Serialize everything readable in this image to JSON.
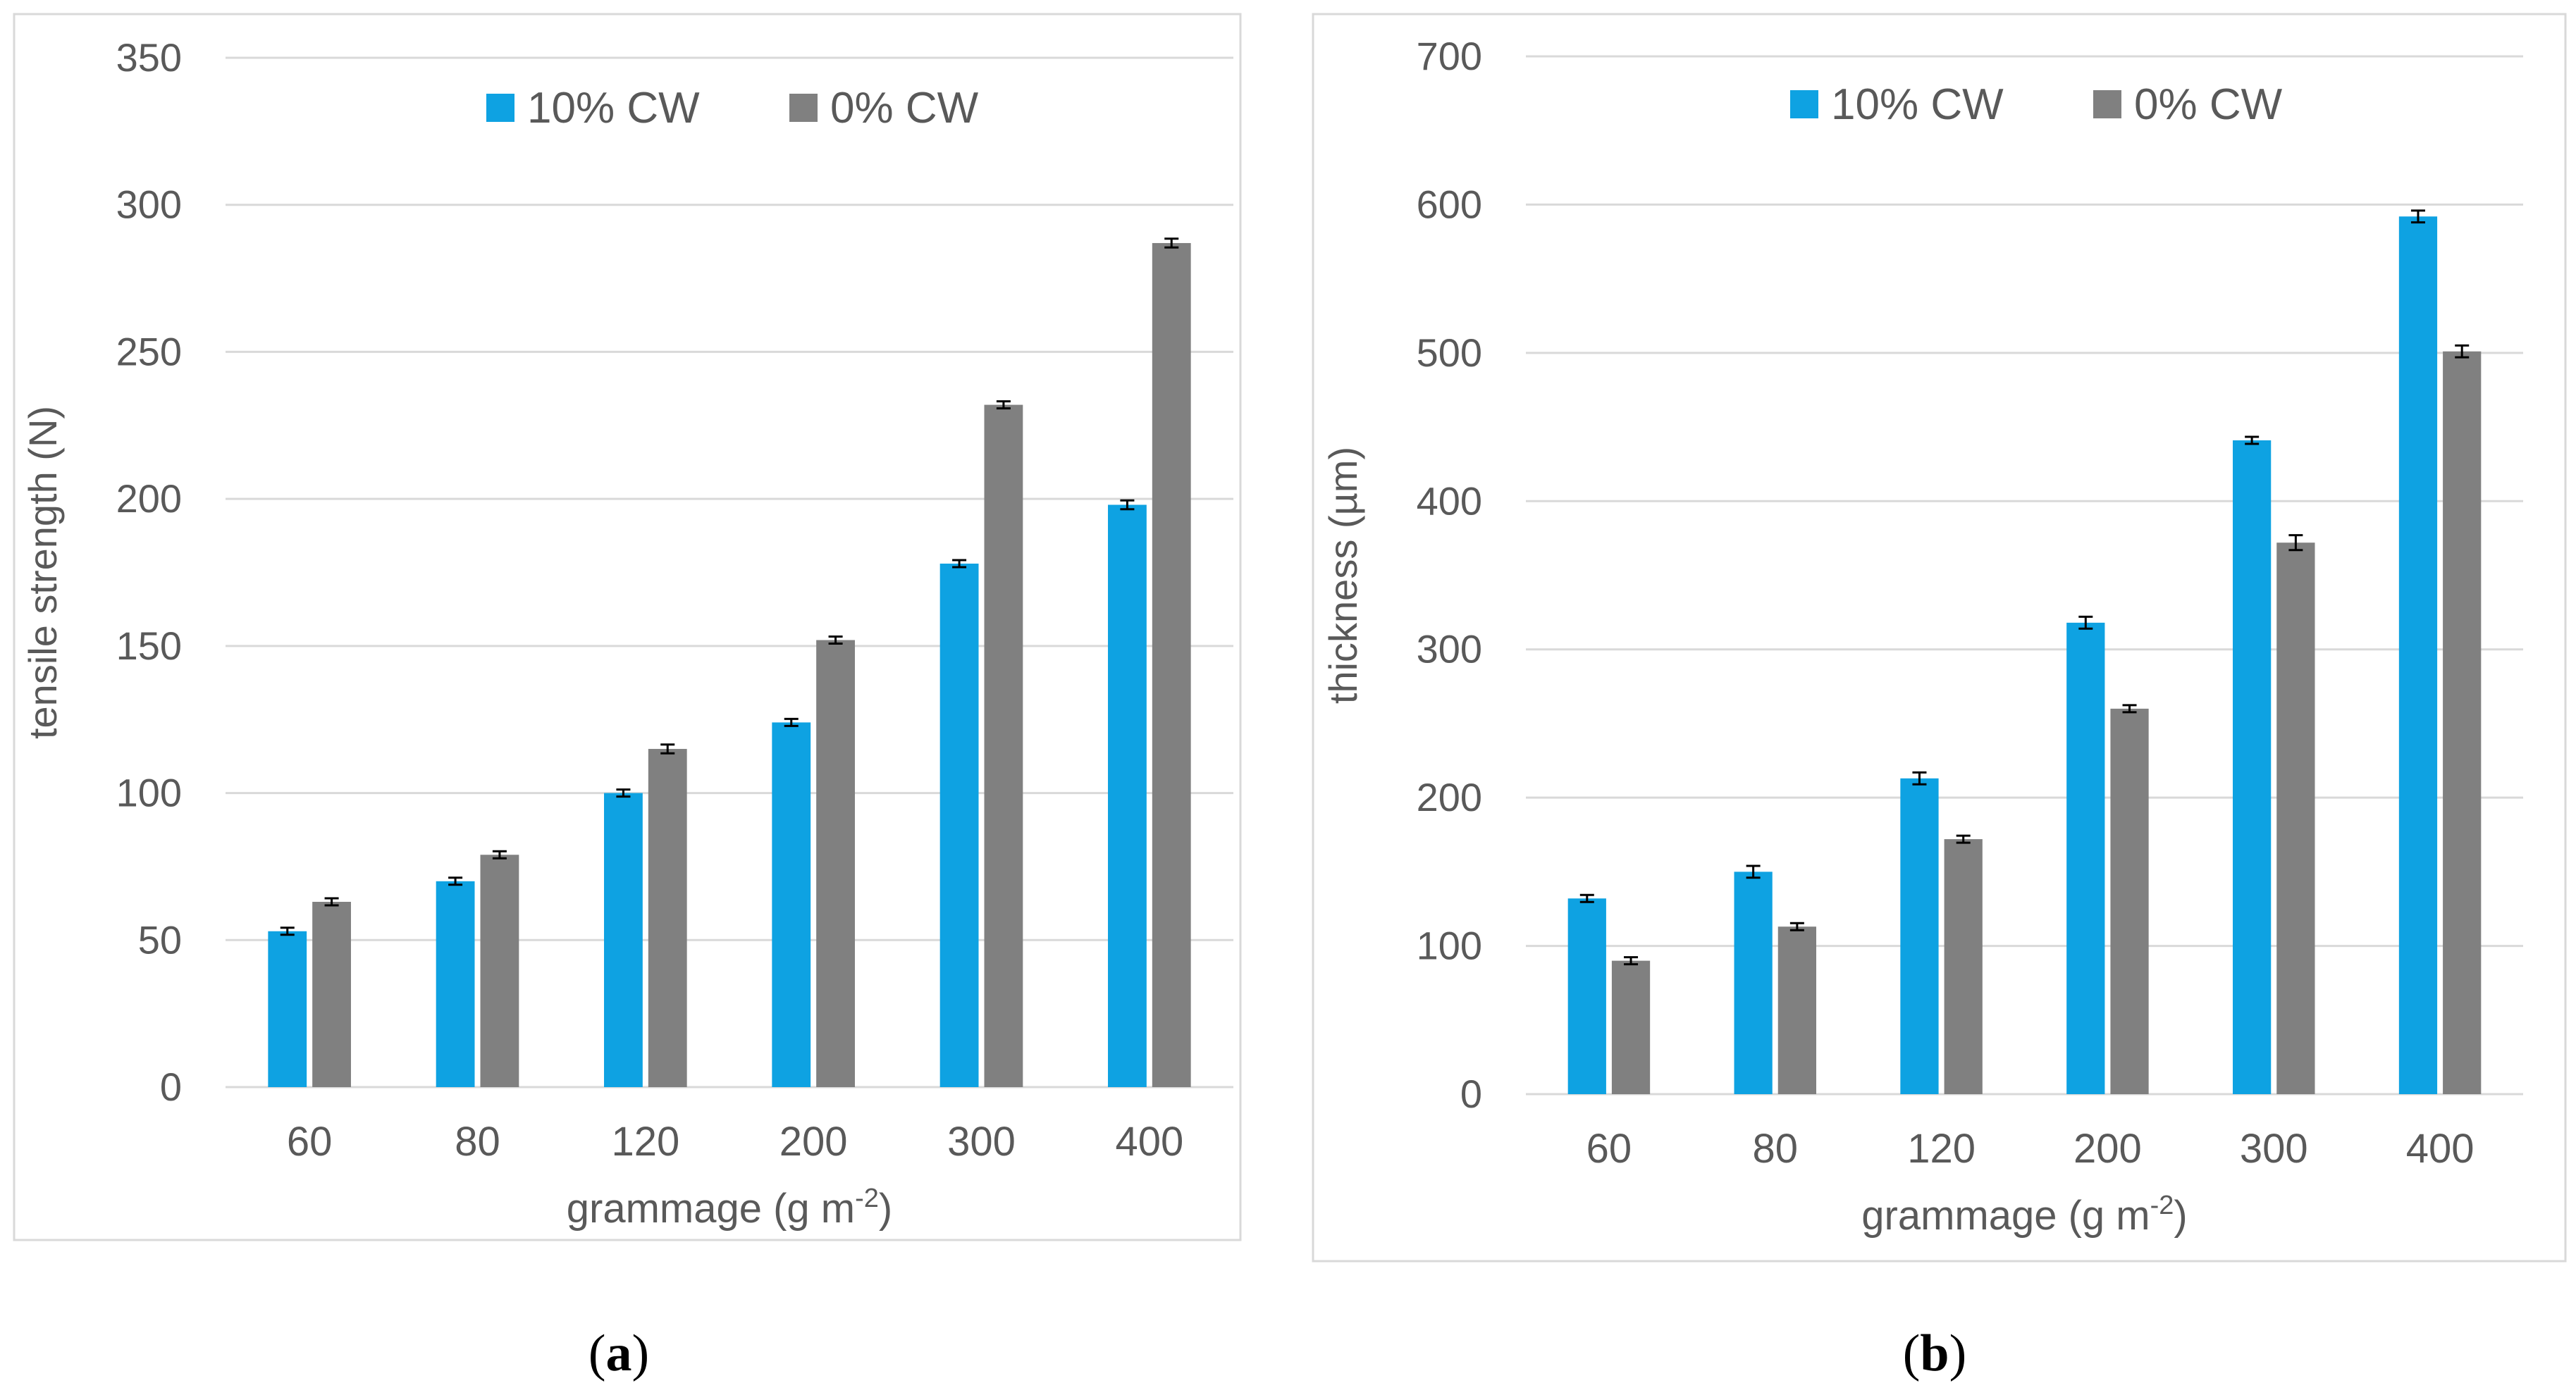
{
  "chart_data": [
    {
      "type": "bar",
      "panel_label": "a",
      "title": "",
      "xlabel": "grammage (g m",
      "xlabel_sup": "-2",
      "xlabel_suffix": ")",
      "ylabel": "tensile strength (N)",
      "categories": [
        "60",
        "80",
        "120",
        "200",
        "300",
        "400"
      ],
      "ylim": [
        0,
        350
      ],
      "yticks": [
        0,
        50,
        100,
        150,
        200,
        250,
        300,
        350
      ],
      "grid": true,
      "legend_position": "top-center",
      "series": [
        {
          "name": "10% CW",
          "color": "#0ea2e2",
          "values": [
            53,
            70,
            100,
            124,
            178,
            198
          ],
          "errors": [
            0.5,
            1,
            0.5,
            0.5,
            0.5,
            1.5
          ]
        },
        {
          "name": "0% CW",
          "color": "#808080",
          "values": [
            63,
            79,
            115,
            152,
            232,
            287
          ],
          "errors": [
            0.5,
            0.5,
            1.5,
            0.5,
            0.5,
            1.5
          ]
        }
      ]
    },
    {
      "type": "bar",
      "panel_label": "b",
      "title": "",
      "xlabel": "grammage (g m",
      "xlabel_sup": "-2",
      "xlabel_suffix": ")",
      "ylabel": "thickness (µm)",
      "categories": [
        "60",
        "80",
        "120",
        "200",
        "300",
        "400"
      ],
      "ylim": [
        0,
        700
      ],
      "yticks": [
        0,
        100,
        200,
        300,
        400,
        500,
        600,
        700
      ],
      "grid": true,
      "legend_position": "top-center",
      "series": [
        {
          "name": "10% CW",
          "color": "#0ea2e2",
          "values": [
            132,
            150,
            213,
            318,
            441,
            592
          ],
          "errors": [
            2,
            4,
            4,
            4,
            2,
            4
          ]
        },
        {
          "name": "0% CW",
          "color": "#808080",
          "values": [
            90,
            113,
            172,
            260,
            372,
            501
          ],
          "errors": [
            2,
            2,
            1,
            2,
            5,
            4
          ]
        }
      ]
    }
  ]
}
